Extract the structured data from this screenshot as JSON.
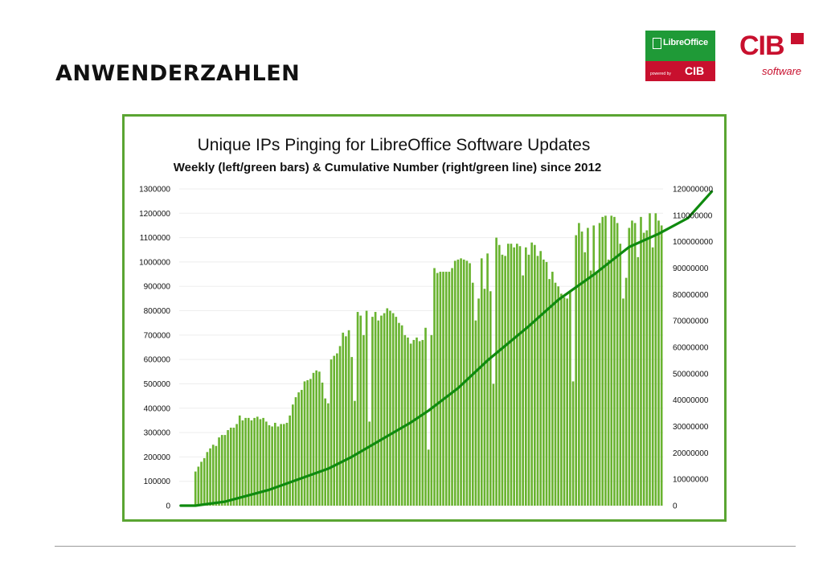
{
  "slide": {
    "title": "ANWENDERZAHLEN"
  },
  "logos": {
    "libreoffice_name": "LibreOffice",
    "powered_by": "powered by",
    "cib_small": "CIB",
    "cib": "CIB",
    "cib_software": "software"
  },
  "colors": {
    "accent_green": "#5aa532",
    "line_green": "#008000",
    "brand_red": "#c8102e"
  },
  "chart_data": {
    "type": "bar",
    "title": "Unique IPs Pinging for LibreOffice Software Updates",
    "subtitle": "Weekly (left/green bars) & Cumulative Number (right/green line) since 2012",
    "xlabel": "",
    "ylabel": "",
    "ylim": [
      0,
      1300000
    ],
    "y2lim": [
      0,
      120000000
    ],
    "yticks": [
      "0",
      "100000",
      "200000",
      "300000",
      "400000",
      "500000",
      "600000",
      "700000",
      "800000",
      "900000",
      "1000000",
      "1100000",
      "1200000",
      "1300000"
    ],
    "y2ticks": [
      "0",
      "10000000",
      "20000000",
      "30000000",
      "40000000",
      "50000000",
      "60000000",
      "70000000",
      "80000000",
      "90000000",
      "100000000",
      "110000000",
      "120000000"
    ],
    "grid": true,
    "series": [
      {
        "type": "bar",
        "axis": "left",
        "values": [
          0,
          0,
          0,
          0,
          0,
          140000,
          160000,
          180000,
          195000,
          220000,
          235000,
          250000,
          245000,
          280000,
          290000,
          290000,
          310000,
          320000,
          320000,
          335000,
          370000,
          350000,
          360000,
          360000,
          350000,
          360000,
          365000,
          355000,
          360000,
          345000,
          330000,
          325000,
          340000,
          325000,
          335000,
          335000,
          340000,
          370000,
          415000,
          445000,
          465000,
          475000,
          510000,
          515000,
          520000,
          545000,
          555000,
          550000,
          505000,
          440000,
          420000,
          600000,
          615000,
          625000,
          655000,
          710000,
          695000,
          720000,
          610000,
          430000,
          795000,
          780000,
          700000,
          800000,
          345000,
          775000,
          795000,
          760000,
          780000,
          790000,
          810000,
          800000,
          790000,
          775000,
          750000,
          740000,
          700000,
          690000,
          665000,
          680000,
          690000,
          675000,
          680000,
          730000,
          230000,
          700000,
          975000,
          955000,
          960000,
          960000,
          960000,
          960000,
          975000,
          1005000,
          1010000,
          1015000,
          1010000,
          1005000,
          995000,
          915000,
          760000,
          850000,
          1015000,
          890000,
          1035000,
          880000,
          500000,
          1100000,
          1070000,
          1030000,
          1025000,
          1075000,
          1075000,
          1060000,
          1075000,
          1065000,
          945000,
          1060000,
          1030000,
          1080000,
          1070000,
          1025000,
          1045000,
          1010000,
          1000000,
          930000,
          960000,
          915000,
          900000,
          870000,
          855000,
          850000,
          880000,
          510000,
          1110000,
          1160000,
          1125000,
          1040000,
          1140000,
          965000,
          1150000,
          960000,
          1160000,
          1185000,
          1190000,
          1010000,
          1190000,
          1185000,
          1160000,
          1075000,
          850000,
          935000,
          1140000,
          1170000,
          1160000,
          1020000,
          1185000,
          1120000,
          1130000,
          1200000,
          1060000,
          1200000,
          1170000,
          1150000
        ]
      },
      {
        "type": "line",
        "axis": "right",
        "x": [
          0,
          5,
          15,
          30,
          40,
          50,
          58,
          68,
          78,
          84,
          94,
          104,
          118,
          128,
          140,
          152,
          162,
          172,
          180
        ],
        "values": [
          0,
          0,
          1500000,
          6000000,
          10000000,
          14000000,
          18500000,
          25000000,
          31500000,
          36000000,
          44500000,
          55000000,
          68000000,
          78000000,
          87500000,
          98000000,
          103000000,
          109000000,
          119000000
        ]
      }
    ]
  }
}
